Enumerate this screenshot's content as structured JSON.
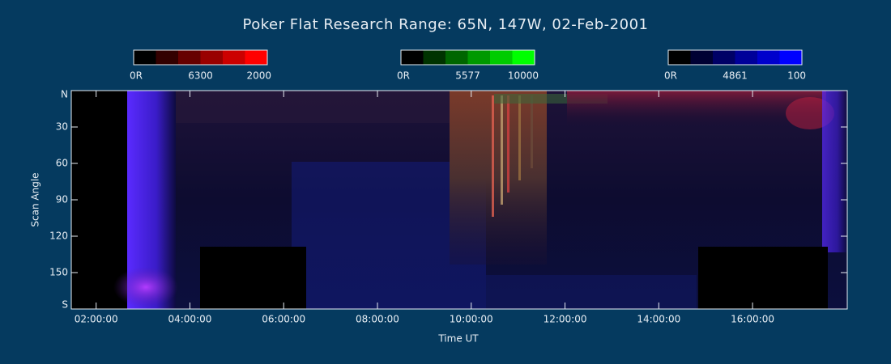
{
  "chart_data": {
    "type": "keogram",
    "title": "Poker Flat Research Range: 65N, 147W, 02-Feb-2001",
    "colorbars": [
      {
        "min_label": "0R",
        "name": "6300",
        "max": 2000,
        "color": "#ff0000"
      },
      {
        "min_label": "0R",
        "name": "5577",
        "max": 10000,
        "color": "#00ff00"
      },
      {
        "min_label": "0R",
        "name": "4861",
        "max": 100,
        "color": "#0000ff"
      }
    ],
    "ylabel": "Scan Angle",
    "xlabel": "Time UT",
    "ylim": [
      0,
      180
    ],
    "yticks": [
      {
        "value": 0,
        "label": "N"
      },
      30,
      60,
      90,
      120,
      150,
      {
        "value": 180,
        "label": "S"
      }
    ],
    "xlim": [
      1.47,
      18.02
    ],
    "xticks": [
      {
        "value": 2,
        "label": "02:00:00"
      },
      {
        "value": 4,
        "label": "04:00:00"
      },
      {
        "value": 6,
        "label": "06:00:00"
      },
      {
        "value": 8,
        "label": "08:00:00"
      },
      {
        "value": 10,
        "label": "10:00:00"
      },
      {
        "value": 12,
        "label": "12:00:00"
      },
      {
        "value": 14,
        "label": "14:00:00"
      },
      {
        "value": 16,
        "label": "16:00:00"
      }
    ]
  }
}
